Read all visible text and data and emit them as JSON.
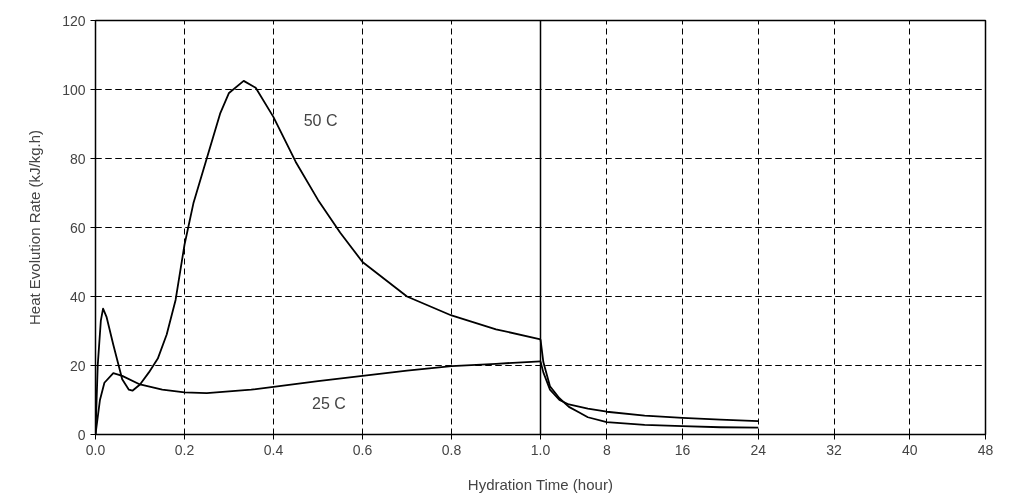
{
  "chart_data": [
    {
      "type": "line",
      "xlabel": "Hydration Time (hour)",
      "ylabel": "Heat Evolution Rate (kJ/kg.h)",
      "xlim": [
        0,
        1
      ],
      "ylim": [
        0,
        120
      ],
      "xticks": [
        {
          "value": 0,
          "label": "0.0"
        },
        0.2,
        0.4,
        0.6,
        0.8,
        {
          "value": 1,
          "label": "1.0"
        }
      ],
      "yticks": [
        0,
        20,
        40,
        60,
        80,
        100,
        120
      ],
      "grid": true,
      "series": [
        {
          "color": "#000000",
          "x": [
            0,
            0.005,
            0.012,
            0.017,
            0.025,
            0.04,
            0.06,
            0.075,
            0.083,
            0.1,
            0.12,
            0.14,
            0.16,
            0.18,
            0.2,
            0.22,
            0.25,
            0.28,
            0.3,
            0.333,
            0.36,
            0.4,
            0.45,
            0.5,
            0.55,
            0.6,
            0.7,
            0.8,
            0.9,
            1.0
          ],
          "values": [
            0,
            20,
            33,
            36.5,
            34,
            26,
            16,
            13,
            12.7,
            14.5,
            18,
            22,
            29,
            39,
            55,
            67,
            80,
            93,
            99,
            102.5,
            100.5,
            92,
            79,
            68,
            58.5,
            50,
            40,
            34.5,
            30.5,
            27.6
          ]
        },
        {
          "color": "#000000",
          "x": [
            0,
            0.01,
            0.02,
            0.04,
            0.06,
            0.1,
            0.15,
            0.2,
            0.25,
            0.3,
            0.35,
            0.4,
            0.5,
            0.6,
            0.7,
            0.8,
            0.9,
            1.0
          ],
          "values": [
            0,
            10,
            15,
            17.8,
            17,
            14.5,
            13,
            12.2,
            12,
            12.5,
            13,
            13.8,
            15.5,
            17,
            18.5,
            19.8,
            20.5,
            21.2
          ]
        }
      ],
      "annotations": [
        {
          "text": "50 C",
          "x": 0.405,
          "y": 91
        },
        {
          "text": "25 C",
          "x": 0.5,
          "y": 15.5
        }
      ]
    },
    {
      "type": "line",
      "xlim": [
        1,
        48
      ],
      "ylim": [
        0,
        120
      ],
      "xticks": [
        8,
        16,
        24,
        32,
        40,
        48
      ],
      "yticks": [
        0,
        20,
        40,
        60,
        80,
        100,
        120
      ],
      "grid": true,
      "tick_labels": "x",
      "series": [
        {
          "color": "#000000",
          "x": [
            1,
            1.3,
            2,
            3,
            4,
            5,
            6,
            8,
            12,
            16,
            20,
            24
          ],
          "values": [
            27.6,
            21,
            14,
            10.5,
            8,
            6.5,
            5,
            3.6,
            2.8,
            2.4,
            2.1,
            2.0
          ]
        },
        {
          "color": "#000000",
          "x": [
            1,
            1.3,
            2,
            3,
            4,
            6,
            8,
            12,
            16,
            20,
            24
          ],
          "values": [
            21.2,
            18,
            13,
            10,
            8.7,
            7.5,
            6.6,
            5.5,
            4.8,
            4.3,
            3.9
          ]
        }
      ]
    }
  ]
}
